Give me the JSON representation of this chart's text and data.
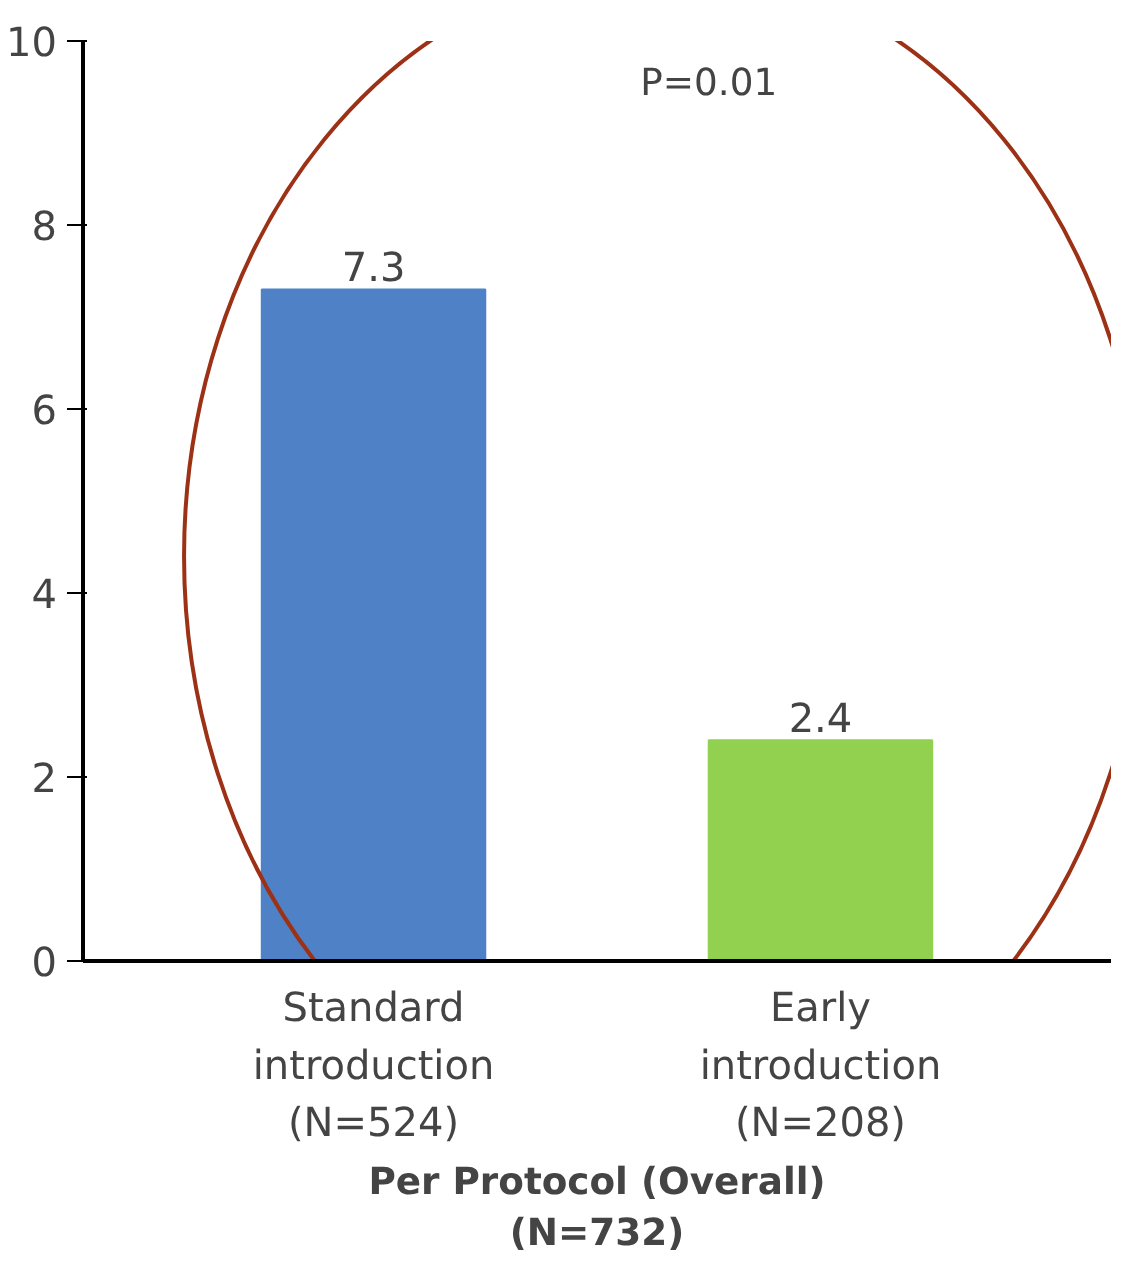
{
  "chart_data": {
    "type": "bar",
    "categories": [
      "Standard\nintroduction\n(N=524)",
      "Early\nintroduction\n(N=208)"
    ],
    "values": [
      7.3,
      2.4
    ],
    "colors": [
      "#4f81c7",
      "#92d050"
    ],
    "ylim": [
      0,
      10
    ],
    "yticks": [
      0,
      2,
      4,
      6,
      8,
      10
    ],
    "xlabel": "Per Protocol (Overall)\n(N=732)",
    "annotations": [
      "P=0.01"
    ],
    "data_labels": true,
    "grid": false
  }
}
